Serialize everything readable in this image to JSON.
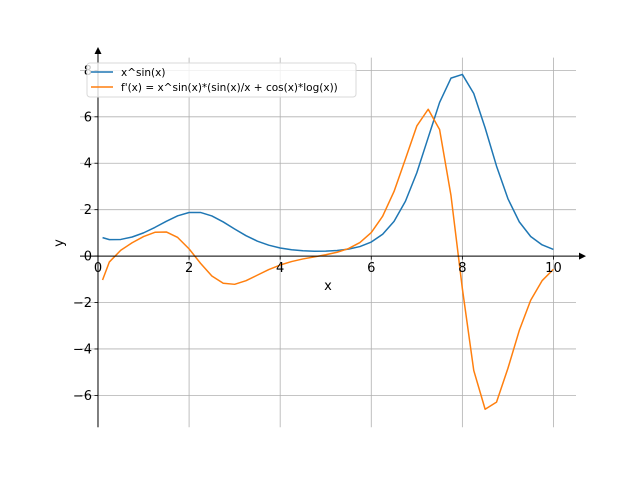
{
  "chart_data": {
    "type": "line",
    "title": "",
    "xlabel": "x",
    "ylabel": "y",
    "xlim": [
      -0.395,
      10.495
    ],
    "ylim": [
      -7.37,
      8.55
    ],
    "xticks": [
      0,
      2,
      4,
      6,
      8,
      10
    ],
    "xtick_labels": [
      "0",
      "2",
      "4",
      "6",
      "8",
      "10"
    ],
    "yticks": [
      -6,
      -4,
      -2,
      0,
      2,
      4,
      6,
      8
    ],
    "ytick_labels": [
      "−6",
      "−4",
      "−2",
      "0",
      "2",
      "4",
      "6",
      "8"
    ],
    "grid": true,
    "legend_position": "top-left",
    "x": [
      0.1,
      0.25,
      0.5,
      0.75,
      1,
      1.25,
      1.5,
      1.75,
      2,
      2.25,
      2.5,
      2.75,
      3,
      3.25,
      3.5,
      3.75,
      4,
      4.25,
      4.5,
      4.75,
      5,
      5.25,
      5.5,
      5.75,
      6,
      6.25,
      6.5,
      6.75,
      7,
      7.25,
      7.5,
      7.75,
      8,
      8.25,
      8.5,
      8.75,
      9,
      9.25,
      9.5,
      9.75,
      10
    ],
    "series": [
      {
        "name": "x^sin(x)",
        "color": "#1f77b4",
        "values": [
          0.795,
          0.71,
          0.717,
          0.822,
          1.0,
          1.236,
          1.499,
          1.734,
          1.878,
          1.88,
          1.73,
          1.471,
          1.168,
          0.88,
          0.644,
          0.47,
          0.35,
          0.274,
          0.23,
          0.211,
          0.214,
          0.241,
          0.3,
          0.411,
          0.606,
          0.941,
          1.496,
          2.361,
          3.591,
          5.106,
          6.619,
          7.665,
          7.825,
          7.004,
          5.523,
          3.877,
          2.473,
          1.474,
          0.844,
          0.484,
          0.286
        ]
      },
      {
        "name": "f'(x) = x^sin(x)*(sin(x)/x + cos(x)*log(x))",
        "color": "#ff7f0e",
        "values": [
          -1.028,
          -0.251,
          0.251,
          0.574,
          0.842,
          1.025,
          1.04,
          0.802,
          0.312,
          -0.308,
          -0.856,
          -1.171,
          -1.215,
          -1.06,
          -0.82,
          -0.581,
          -0.384,
          -0.235,
          -0.123,
          -0.032,
          0.057,
          0.165,
          0.324,
          0.583,
          1.014,
          1.719,
          2.784,
          4.184,
          5.605,
          6.325,
          5.451,
          2.609,
          -1.4,
          -4.925,
          -6.597,
          -6.29,
          -4.837,
          -3.201,
          -1.901,
          -1.06,
          -0.568
        ]
      }
    ]
  }
}
